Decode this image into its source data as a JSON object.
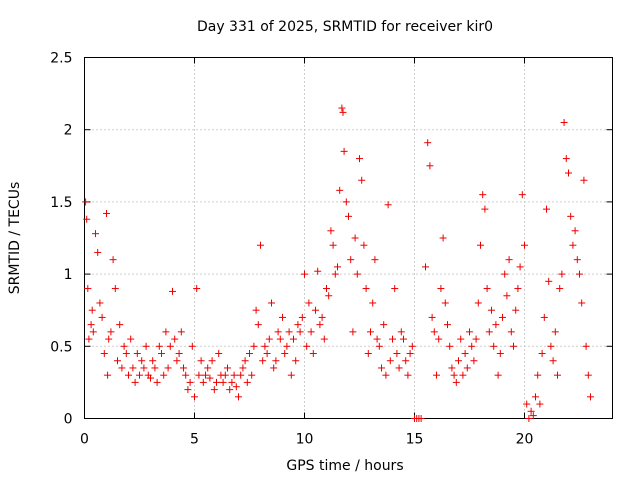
{
  "chart_data": {
    "type": "scatter",
    "title": "Day 331 of 2025, SRMTID for receiver kir0",
    "xlabel": "GPS time / hours",
    "ylabel": "SRMTID / TECUs",
    "xlim": [
      0,
      24
    ],
    "ylim": [
      0,
      2.5
    ],
    "xticks": [
      0,
      5,
      10,
      15,
      20
    ],
    "xtick_labels": [
      "0",
      "5",
      "10",
      "15",
      "20"
    ],
    "yticks": [
      0,
      0.5,
      1,
      1.5,
      2,
      2.5
    ],
    "ytick_labels": [
      "0",
      "0.5",
      "1",
      "1.5",
      "2",
      "2.5"
    ],
    "grid": true,
    "marker": "plus",
    "series": [
      {
        "name": "SRMTID",
        "color": "#ee0000",
        "x": [
          0.05,
          0.1,
          0.15,
          0.2,
          0.3,
          0.35,
          0.4,
          0.5,
          0.6,
          0.7,
          0.8,
          0.9,
          1.0,
          1.05,
          1.1,
          1.2,
          1.3,
          1.4,
          1.5,
          1.6,
          1.7,
          1.8,
          1.9,
          2.0,
          2.1,
          2.2,
          2.3,
          2.4,
          2.5,
          2.6,
          2.7,
          2.8,
          2.9,
          3.0,
          3.1,
          3.2,
          3.3,
          3.4,
          3.5,
          3.6,
          3.7,
          3.8,
          3.9,
          4.0,
          4.1,
          4.2,
          4.3,
          4.4,
          4.5,
          4.6,
          4.7,
          4.8,
          4.9,
          5.0,
          5.1,
          5.2,
          5.3,
          5.4,
          5.5,
          5.6,
          5.7,
          5.8,
          5.9,
          6.0,
          6.1,
          6.2,
          6.3,
          6.4,
          6.5,
          6.6,
          6.7,
          6.8,
          6.9,
          7.0,
          7.1,
          7.2,
          7.3,
          7.4,
          7.5,
          7.6,
          7.7,
          7.8,
          7.9,
          8.0,
          8.1,
          8.2,
          8.3,
          8.4,
          8.5,
          8.6,
          8.7,
          8.8,
          8.9,
          9.0,
          9.1,
          9.2,
          9.3,
          9.4,
          9.5,
          9.6,
          9.7,
          9.8,
          9.9,
          10.0,
          10.1,
          10.2,
          10.3,
          10.4,
          10.5,
          10.6,
          10.7,
          10.8,
          10.9,
          11.0,
          11.1,
          11.2,
          11.3,
          11.4,
          11.5,
          11.6,
          11.7,
          11.75,
          11.8,
          11.9,
          12.0,
          12.1,
          12.2,
          12.3,
          12.4,
          12.5,
          12.6,
          12.7,
          12.8,
          12.9,
          13.0,
          13.1,
          13.2,
          13.3,
          13.4,
          13.5,
          13.6,
          13.7,
          13.8,
          13.9,
          14.0,
          14.1,
          14.2,
          14.3,
          14.4,
          14.5,
          14.6,
          14.7,
          14.8,
          14.9,
          15.0,
          15.1,
          15.2,
          15.3,
          15.5,
          15.6,
          15.7,
          15.8,
          15.9,
          16.0,
          16.1,
          16.2,
          16.3,
          16.4,
          16.5,
          16.6,
          16.7,
          16.8,
          16.9,
          17.0,
          17.1,
          17.2,
          17.3,
          17.4,
          17.5,
          17.6,
          17.7,
          17.8,
          17.9,
          18.0,
          18.1,
          18.2,
          18.3,
          18.4,
          18.5,
          18.6,
          18.7,
          18.8,
          18.9,
          19.0,
          19.1,
          19.2,
          19.3,
          19.4,
          19.5,
          19.6,
          19.7,
          19.8,
          19.9,
          20.0,
          20.1,
          20.2,
          20.3,
          20.4,
          20.5,
          20.6,
          20.7,
          20.8,
          20.9,
          21.0,
          21.1,
          21.2,
          21.3,
          21.4,
          21.5,
          21.6,
          21.7,
          21.8,
          21.9,
          22.0,
          22.1,
          22.2,
          22.3,
          22.4,
          22.5,
          22.6,
          22.7,
          22.8,
          22.9,
          23.0
        ],
        "y": [
          1.5,
          1.38,
          0.9,
          0.55,
          0.65,
          0.75,
          0.6,
          1.28,
          1.15,
          0.8,
          0.7,
          0.45,
          1.42,
          0.3,
          0.55,
          0.6,
          1.1,
          0.9,
          0.4,
          0.65,
          0.35,
          0.5,
          0.45,
          0.3,
          0.55,
          0.35,
          0.25,
          0.45,
          0.3,
          0.4,
          0.35,
          0.5,
          0.3,
          0.28,
          0.4,
          0.35,
          0.25,
          0.5,
          0.45,
          0.3,
          0.6,
          0.35,
          0.5,
          0.88,
          0.55,
          0.4,
          0.45,
          0.6,
          0.35,
          0.3,
          0.2,
          0.25,
          0.5,
          0.15,
          0.9,
          0.3,
          0.4,
          0.25,
          0.3,
          0.35,
          0.28,
          0.4,
          0.2,
          0.25,
          0.45,
          0.3,
          0.25,
          0.3,
          0.35,
          0.2,
          0.25,
          0.3,
          0.22,
          0.15,
          0.3,
          0.35,
          0.4,
          0.25,
          0.45,
          0.3,
          0.5,
          0.75,
          0.65,
          1.2,
          0.4,
          0.5,
          0.45,
          0.55,
          0.8,
          0.35,
          0.4,
          0.6,
          0.55,
          0.7,
          0.45,
          0.5,
          0.6,
          0.3,
          0.55,
          0.4,
          0.65,
          0.6,
          0.7,
          1.0,
          0.5,
          0.8,
          0.6,
          0.45,
          0.75,
          1.02,
          0.65,
          0.7,
          0.55,
          0.9,
          0.85,
          1.3,
          1.2,
          1.0,
          1.05,
          1.58,
          2.15,
          2.12,
          1.85,
          1.5,
          1.4,
          1.1,
          0.6,
          1.25,
          1.0,
          1.8,
          1.65,
          1.2,
          0.9,
          0.45,
          0.6,
          0.8,
          1.1,
          0.55,
          0.5,
          0.35,
          0.65,
          0.3,
          1.48,
          0.4,
          0.55,
          0.9,
          0.45,
          0.35,
          0.6,
          0.55,
          0.4,
          0.3,
          0.45,
          0.5,
          0.0,
          0.0,
          0.0,
          0.0,
          1.05,
          1.91,
          1.75,
          0.7,
          0.6,
          0.3,
          0.55,
          0.9,
          1.25,
          0.8,
          0.65,
          0.5,
          0.35,
          0.3,
          0.25,
          0.4,
          0.55,
          0.3,
          0.45,
          0.35,
          0.6,
          0.5,
          0.4,
          0.55,
          0.8,
          1.2,
          1.55,
          1.45,
          0.9,
          0.6,
          0.75,
          0.5,
          0.65,
          0.3,
          0.45,
          0.7,
          1.0,
          0.85,
          1.1,
          0.6,
          0.5,
          0.75,
          0.9,
          1.05,
          1.55,
          1.2,
          0.1,
          0.0,
          0.05,
          0.02,
          0.15,
          0.3,
          0.1,
          0.45,
          0.7,
          1.45,
          0.95,
          0.5,
          0.4,
          0.6,
          0.3,
          0.9,
          1.0,
          2.05,
          1.8,
          1.7,
          1.4,
          1.2,
          1.3,
          1.1,
          1.0,
          0.8,
          1.65,
          0.5,
          0.3,
          0.15
        ]
      }
    ]
  }
}
